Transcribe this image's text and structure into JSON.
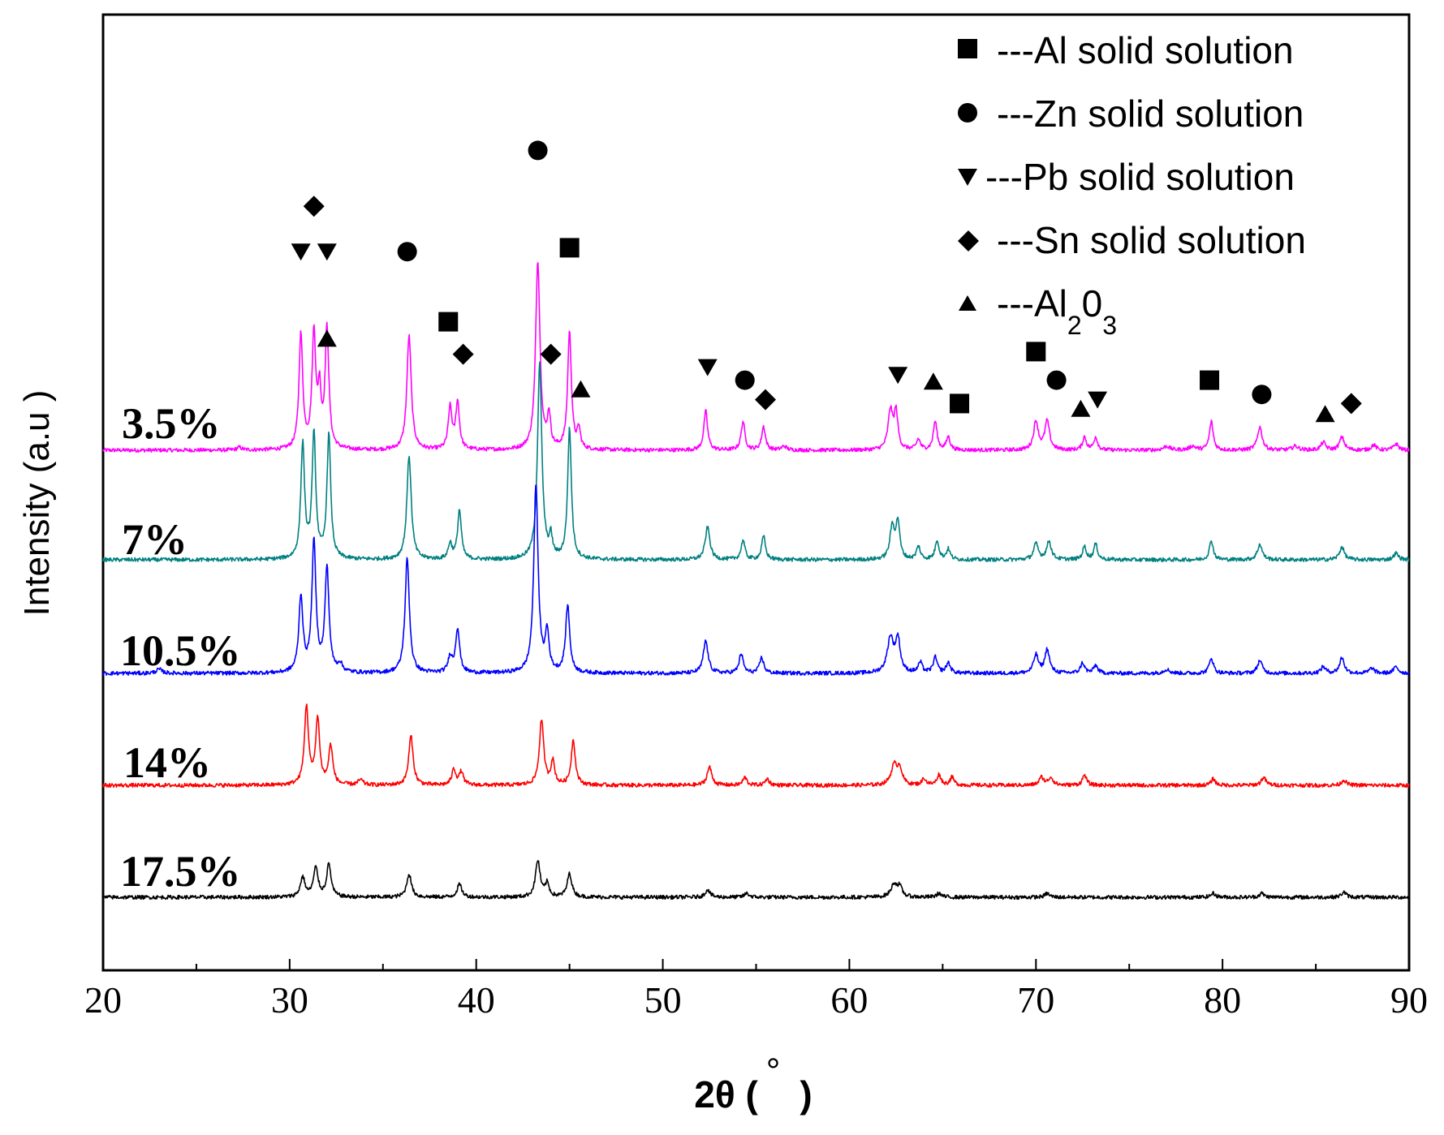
{
  "chart_data": {
    "type": "line",
    "title": "",
    "xlabel": "2θ ( ° )",
    "xlabel_parts": {
      "pre": "2θ (",
      "deg": "°",
      "post": ")"
    },
    "ylabel": "Intensity   (a.u )",
    "xlim": [
      20,
      90
    ],
    "xticks": [
      "20",
      "30",
      "40",
      "50",
      "60",
      "70",
      "80",
      "90"
    ],
    "grid": false,
    "legend_placement": "top-right",
    "legend": [
      {
        "marker": "square",
        "text": "---Al solid solution"
      },
      {
        "marker": "circle",
        "text": "---Zn solid solution"
      },
      {
        "marker": "triangle-down",
        "text": "---Pb solid solution"
      },
      {
        "marker": "diamond",
        "text": "---Sn solid solution"
      },
      {
        "marker": "triangle-up",
        "text": "---Al",
        "sub1": "2",
        "mid": "0",
        "sub2": "3"
      }
    ],
    "series": [
      {
        "name": "3.5%",
        "color": "#ff00ff",
        "baseline": 100,
        "peaks": [
          [
            27.3,
            2,
            0.15
          ],
          [
            30.6,
            88,
            0.12
          ],
          [
            31.3,
            88,
            0.12
          ],
          [
            31.6,
            40,
            0.1
          ],
          [
            32.0,
            92,
            0.12
          ],
          [
            36.4,
            88,
            0.14
          ],
          [
            38.6,
            32,
            0.12
          ],
          [
            39.0,
            36,
            0.12
          ],
          [
            43.3,
            145,
            0.14
          ],
          [
            43.9,
            25,
            0.1
          ],
          [
            45.0,
            90,
            0.12
          ],
          [
            45.5,
            15,
            0.1
          ],
          [
            52.3,
            30,
            0.12
          ],
          [
            54.3,
            22,
            0.12
          ],
          [
            55.4,
            18,
            0.12
          ],
          [
            56.5,
            3,
            0.15
          ],
          [
            62.2,
            30,
            0.15
          ],
          [
            62.5,
            28,
            0.12
          ],
          [
            63.7,
            8,
            0.12
          ],
          [
            64.6,
            22,
            0.12
          ],
          [
            65.3,
            10,
            0.12
          ],
          [
            70.0,
            22,
            0.15
          ],
          [
            70.6,
            22,
            0.15
          ],
          [
            72.6,
            10,
            0.12
          ],
          [
            73.2,
            10,
            0.12
          ],
          [
            77.0,
            3,
            0.2
          ],
          [
            78.4,
            3,
            0.2
          ],
          [
            79.4,
            22,
            0.12
          ],
          [
            82.0,
            18,
            0.15
          ],
          [
            83.9,
            3,
            0.2
          ],
          [
            85.4,
            6,
            0.15
          ],
          [
            86.4,
            10,
            0.15
          ],
          [
            88.1,
            4,
            0.15
          ],
          [
            89.3,
            5,
            0.15
          ]
        ]
      },
      {
        "name": "7%",
        "color": "#008080",
        "baseline": 100,
        "peaks": [
          [
            30.7,
            88,
            0.12
          ],
          [
            31.3,
            95,
            0.12
          ],
          [
            32.1,
            95,
            0.12
          ],
          [
            36.4,
            80,
            0.14
          ],
          [
            38.6,
            12,
            0.12
          ],
          [
            39.1,
            38,
            0.12
          ],
          [
            43.4,
            150,
            0.14
          ],
          [
            44.0,
            15,
            0.1
          ],
          [
            45.0,
            100,
            0.12
          ],
          [
            52.4,
            25,
            0.15
          ],
          [
            54.3,
            15,
            0.12
          ],
          [
            55.4,
            18,
            0.12
          ],
          [
            62.3,
            25,
            0.15
          ],
          [
            62.6,
            28,
            0.12
          ],
          [
            63.7,
            10,
            0.12
          ],
          [
            64.7,
            15,
            0.12
          ],
          [
            65.3,
            8,
            0.12
          ],
          [
            70.0,
            12,
            0.15
          ],
          [
            70.7,
            14,
            0.15
          ],
          [
            72.6,
            10,
            0.12
          ],
          [
            73.2,
            12,
            0.12
          ],
          [
            79.4,
            15,
            0.12
          ],
          [
            82.0,
            12,
            0.15
          ],
          [
            86.4,
            10,
            0.15
          ],
          [
            89.3,
            5,
            0.15
          ]
        ]
      },
      {
        "name": "10.5%",
        "color": "#0000ff",
        "baseline": 100,
        "peaks": [
          [
            23.0,
            3,
            0.2
          ],
          [
            30.6,
            58,
            0.13
          ],
          [
            31.3,
            100,
            0.13
          ],
          [
            32.0,
            80,
            0.13
          ],
          [
            32.7,
            6,
            0.15
          ],
          [
            36.3,
            88,
            0.14
          ],
          [
            38.6,
            12,
            0.13
          ],
          [
            39.0,
            34,
            0.13
          ],
          [
            43.2,
            145,
            0.14
          ],
          [
            43.8,
            30,
            0.12
          ],
          [
            44.9,
            52,
            0.13
          ],
          [
            52.3,
            25,
            0.15
          ],
          [
            54.2,
            15,
            0.13
          ],
          [
            55.3,
            12,
            0.13
          ],
          [
            62.2,
            27,
            0.2
          ],
          [
            62.6,
            25,
            0.15
          ],
          [
            63.8,
            8,
            0.13
          ],
          [
            64.6,
            12,
            0.13
          ],
          [
            65.3,
            8,
            0.13
          ],
          [
            70.0,
            14,
            0.15
          ],
          [
            70.6,
            18,
            0.15
          ],
          [
            72.5,
            8,
            0.13
          ],
          [
            73.2,
            6,
            0.13
          ],
          [
            77.0,
            3,
            0.2
          ],
          [
            79.4,
            12,
            0.13
          ],
          [
            82.0,
            10,
            0.15
          ],
          [
            85.4,
            5,
            0.15
          ],
          [
            86.4,
            12,
            0.15
          ],
          [
            88.0,
            4,
            0.15
          ],
          [
            89.3,
            5,
            0.15
          ]
        ]
      },
      {
        "name": "14%",
        "color": "#ff0000",
        "baseline": 100,
        "peaks": [
          [
            30.9,
            60,
            0.13
          ],
          [
            31.5,
            50,
            0.13
          ],
          [
            32.2,
            30,
            0.13
          ],
          [
            33.8,
            4,
            0.15
          ],
          [
            36.5,
            38,
            0.14
          ],
          [
            38.8,
            12,
            0.13
          ],
          [
            39.2,
            10,
            0.13
          ],
          [
            43.5,
            50,
            0.14
          ],
          [
            44.1,
            18,
            0.12
          ],
          [
            45.2,
            35,
            0.13
          ],
          [
            52.5,
            14,
            0.15
          ],
          [
            54.4,
            6,
            0.13
          ],
          [
            55.6,
            5,
            0.13
          ],
          [
            62.4,
            15,
            0.2
          ],
          [
            62.7,
            12,
            0.15
          ],
          [
            64.0,
            5,
            0.13
          ],
          [
            64.8,
            8,
            0.13
          ],
          [
            65.5,
            6,
            0.13
          ],
          [
            70.3,
            6,
            0.15
          ],
          [
            70.8,
            6,
            0.15
          ],
          [
            72.6,
            8,
            0.13
          ],
          [
            79.5,
            5,
            0.13
          ],
          [
            82.2,
            6,
            0.15
          ],
          [
            86.5,
            4,
            0.15
          ]
        ]
      },
      {
        "name": "17.5%",
        "color": "#000000",
        "baseline": 100,
        "peaks": [
          [
            30.7,
            15,
            0.15
          ],
          [
            31.4,
            22,
            0.15
          ],
          [
            32.1,
            25,
            0.14
          ],
          [
            36.4,
            18,
            0.15
          ],
          [
            39.1,
            10,
            0.15
          ],
          [
            43.3,
            28,
            0.15
          ],
          [
            43.8,
            10,
            0.13
          ],
          [
            45.0,
            18,
            0.15
          ],
          [
            52.4,
            6,
            0.15
          ],
          [
            54.5,
            3,
            0.15
          ],
          [
            62.4,
            10,
            0.2
          ],
          [
            62.7,
            7,
            0.15
          ],
          [
            64.8,
            3,
            0.15
          ],
          [
            70.6,
            3,
            0.15
          ],
          [
            79.5,
            3,
            0.15
          ],
          [
            82.1,
            3,
            0.15
          ],
          [
            86.5,
            4,
            0.15
          ]
        ]
      }
    ],
    "phase_markers": [
      {
        "x": 30.6,
        "y": 153,
        "marker": "triangle-down"
      },
      {
        "x": 32.0,
        "y": 153,
        "marker": "triangle-down"
      },
      {
        "x": 31.3,
        "y": 188,
        "marker": "diamond"
      },
      {
        "x": 32.0,
        "y": 86,
        "marker": "triangle-up"
      },
      {
        "x": 36.3,
        "y": 153,
        "marker": "circle"
      },
      {
        "x": 38.5,
        "y": 99,
        "marker": "square"
      },
      {
        "x": 39.3,
        "y": 74,
        "marker": "diamond"
      },
      {
        "x": 43.3,
        "y": 231,
        "marker": "circle"
      },
      {
        "x": 44.0,
        "y": 74,
        "marker": "diamond"
      },
      {
        "x": 45.0,
        "y": 156,
        "marker": "square"
      },
      {
        "x": 45.6,
        "y": 47,
        "marker": "triangle-up"
      },
      {
        "x": 52.4,
        "y": 64,
        "marker": "triangle-down"
      },
      {
        "x": 54.4,
        "y": 54,
        "marker": "circle"
      },
      {
        "x": 55.5,
        "y": 39,
        "marker": "diamond"
      },
      {
        "x": 62.6,
        "y": 58,
        "marker": "triangle-down"
      },
      {
        "x": 64.5,
        "y": 53,
        "marker": "triangle-up"
      },
      {
        "x": 65.9,
        "y": 36,
        "marker": "square"
      },
      {
        "x": 70.0,
        "y": 76,
        "marker": "square"
      },
      {
        "x": 71.1,
        "y": 54,
        "marker": "circle"
      },
      {
        "x": 72.4,
        "y": 32,
        "marker": "triangle-up"
      },
      {
        "x": 73.3,
        "y": 39,
        "marker": "triangle-down"
      },
      {
        "x": 79.3,
        "y": 54,
        "marker": "square"
      },
      {
        "x": 82.1,
        "y": 43,
        "marker": "circle"
      },
      {
        "x": 85.5,
        "y": 28,
        "marker": "triangle-up"
      },
      {
        "x": 86.9,
        "y": 36,
        "marker": "diamond"
      }
    ]
  }
}
